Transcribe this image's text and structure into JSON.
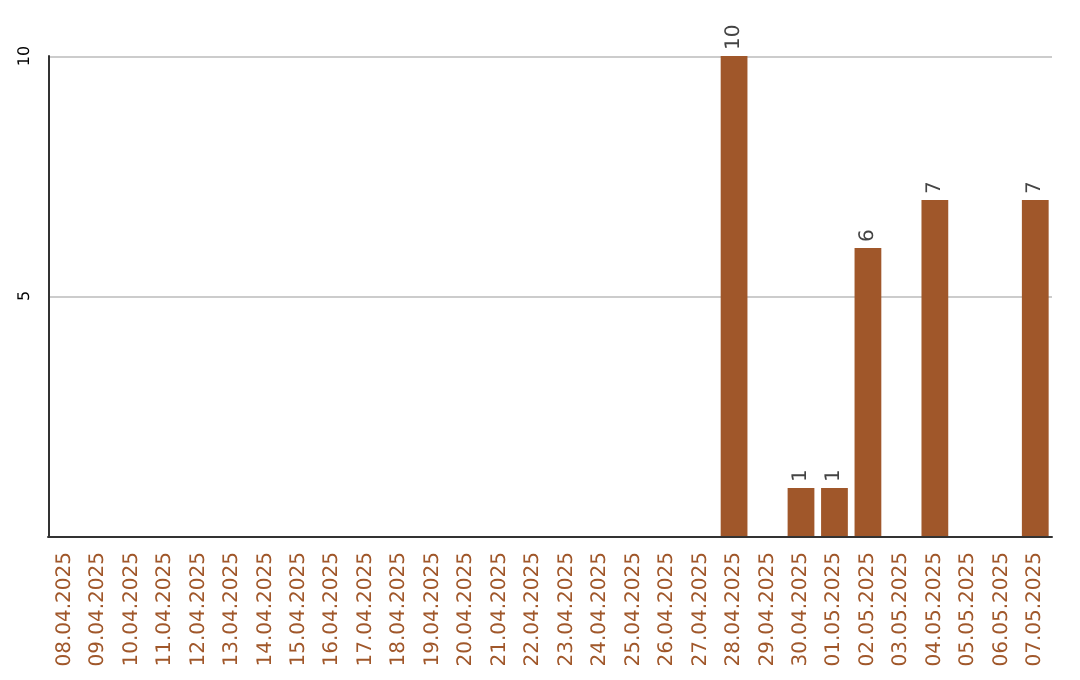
{
  "chart_data": {
    "type": "bar",
    "categories": [
      "08.04.2025",
      "09.04.2025",
      "10.04.2025",
      "11.04.2025",
      "12.04.2025",
      "13.04.2025",
      "14.04.2025",
      "15.04.2025",
      "16.04.2025",
      "17.04.2025",
      "18.04.2025",
      "19.04.2025",
      "20.04.2025",
      "21.04.2025",
      "22.04.2025",
      "23.04.2025",
      "24.04.2025",
      "25.04.2025",
      "26.04.2025",
      "27.04.2025",
      "28.04.2025",
      "29.04.2025",
      "30.04.2025",
      "01.05.2025",
      "02.05.2025",
      "03.05.2025",
      "04.05.2025",
      "05.05.2025",
      "06.05.2025",
      "07.05.2025"
    ],
    "series": [
      {
        "color": "#a0572a",
        "values": [
          0,
          0,
          0,
          0,
          0,
          0,
          0,
          0,
          0,
          0,
          0,
          0,
          0,
          0,
          0,
          0,
          0,
          0,
          0,
          0,
          10,
          0,
          1,
          1,
          6,
          0,
          7,
          0,
          0,
          7
        ],
        "value_labels": [
          null,
          null,
          null,
          null,
          null,
          null,
          null,
          null,
          null,
          null,
          null,
          null,
          null,
          null,
          null,
          null,
          null,
          null,
          null,
          null,
          "10",
          null,
          "1",
          "1",
          "6",
          null,
          "7",
          null,
          null,
          "7"
        ]
      }
    ],
    "ylim": [
      0,
      10
    ],
    "yticks": [
      {
        "value": 0,
        "label": null
      },
      5,
      10
    ],
    "grid": "y"
  }
}
